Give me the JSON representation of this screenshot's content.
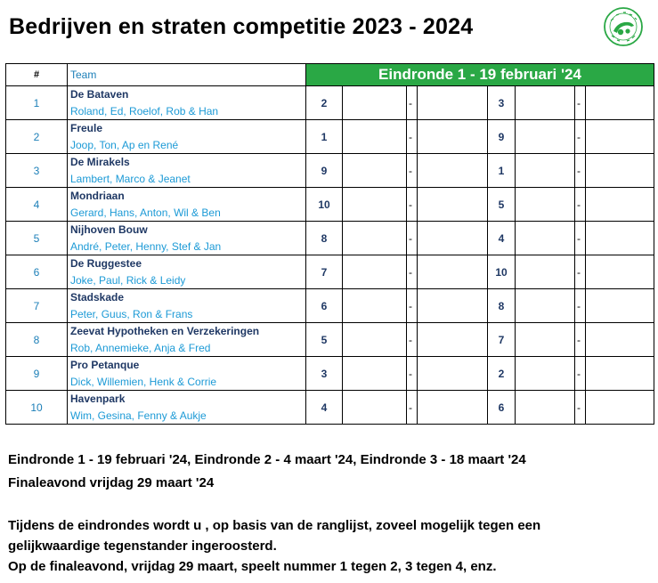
{
  "title": "Bedrijven en straten competitie 2023 - 2024",
  "logo": {
    "icon": "club-logo-icon",
    "color": "#2aa845"
  },
  "table": {
    "header_num": "#",
    "header_team": "Team",
    "header_round": "Eindronde 1 - 19 februari '24",
    "rows": [
      {
        "num": "1",
        "name": "De Bataven",
        "members": "Roland, Ed, Roelof, Rob & Han",
        "score1": "2",
        "dash1": "-",
        "score2": "3",
        "dash2": "-"
      },
      {
        "num": "2",
        "name": "Freule",
        "members": "Joop, Ton, Ap en René",
        "score1": "1",
        "dash1": "-",
        "score2": "9",
        "dash2": "-"
      },
      {
        "num": "3",
        "name": "De Mirakels",
        "members": "Lambert, Marco & Jeanet",
        "score1": "9",
        "dash1": "-",
        "score2": "1",
        "dash2": "-"
      },
      {
        "num": "4",
        "name": "Mondriaan",
        "members": "Gerard, Hans, Anton, Wil & Ben",
        "score1": "10",
        "dash1": "-",
        "score2": "5",
        "dash2": "-"
      },
      {
        "num": "5",
        "name": "Nijhoven Bouw",
        "members": "André, Peter, Henny, Stef & Jan",
        "score1": "8",
        "dash1": "-",
        "score2": "4",
        "dash2": "-"
      },
      {
        "num": "6",
        "name": "De Ruggestee",
        "members": "Joke, Paul, Rick & Leidy",
        "score1": "7",
        "dash1": "-",
        "score2": "10",
        "dash2": "-"
      },
      {
        "num": "7",
        "name": "Stadskade",
        "members": "Peter, Guus, Ron & Frans",
        "score1": "6",
        "dash1": "-",
        "score2": "8",
        "dash2": "-"
      },
      {
        "num": "8",
        "name": "Zeevat Hypotheken en Verzekeringen",
        "members": "Rob, Annemieke, Anja & Fred",
        "score1": "5",
        "dash1": "-",
        "score2": "7",
        "dash2": "-"
      },
      {
        "num": "9",
        "name": "Pro Petanque",
        "members": "Dick, Willemien, Henk & Corrie",
        "score1": "3",
        "dash1": "-",
        "score2": "2",
        "dash2": "-"
      },
      {
        "num": "10",
        "name": "Havenpark",
        "members": "Wim, Gesina, Fenny & Aukje",
        "score1": "4",
        "dash1": "-",
        "score2": "6",
        "dash2": "-"
      }
    ]
  },
  "footer": {
    "line1": "Eindronde 1 - 19 februari '24, Eindronde 2 - 4 maart '24, Eindronde 3 - 18 maart '24",
    "line2": "Finaleavond vrijdag 29 maart '24",
    "line3": "Tijdens de eindrondes wordt u , op basis van de ranglijst, zoveel mogelijk tegen een",
    "line4": "gelijkwaardige tegenstander ingeroosterd.",
    "line5": "Op de finaleavond, vrijdag 29 maart, speelt nummer 1 tegen 2, 3 tegen 4, enz."
  }
}
